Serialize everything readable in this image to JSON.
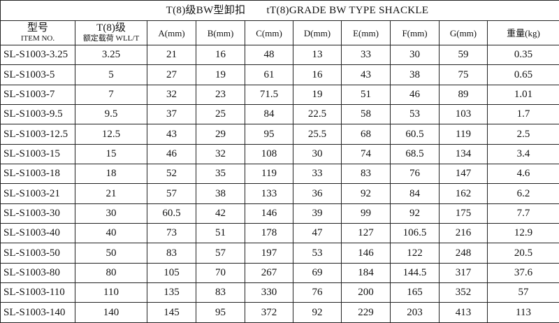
{
  "title": {
    "cn": "T(8)级BW型卸扣",
    "en": "tT(8)GRADE BW TYPE SHACKLE"
  },
  "headers": [
    {
      "cn": "型号",
      "en": "ITEM NO."
    },
    {
      "cn": "T(8)级",
      "en": "额定载荷 WLL/T"
    },
    {
      "label": "A(mm)"
    },
    {
      "label": "B(mm)"
    },
    {
      "label": "C(mm)"
    },
    {
      "label": "D(mm)"
    },
    {
      "label": "E(mm)"
    },
    {
      "label": "F(mm)"
    },
    {
      "label": "G(mm)"
    },
    {
      "label": "重量(kg)"
    }
  ],
  "rows": [
    [
      "SL-S1003-3.25",
      "3.25",
      "21",
      "16",
      "48",
      "13",
      "33",
      "30",
      "59",
      "0.35"
    ],
    [
      "SL-S1003-5",
      "5",
      "27",
      "19",
      "61",
      "16",
      "43",
      "38",
      "75",
      "0.65"
    ],
    [
      "SL-S1003-7",
      "7",
      "32",
      "23",
      "71.5",
      "19",
      "51",
      "46",
      "89",
      "1.01"
    ],
    [
      "SL-S1003-9.5",
      "9.5",
      "37",
      "25",
      "84",
      "22.5",
      "58",
      "53",
      "103",
      "1.7"
    ],
    [
      "SL-S1003-12.5",
      "12.5",
      "43",
      "29",
      "95",
      "25.5",
      "68",
      "60.5",
      "119",
      "2.5"
    ],
    [
      "SL-S1003-15",
      "15",
      "46",
      "32",
      "108",
      "30",
      "74",
      "68.5",
      "134",
      "3.4"
    ],
    [
      "SL-S1003-18",
      "18",
      "52",
      "35",
      "119",
      "33",
      "83",
      "76",
      "147",
      "4.6"
    ],
    [
      "SL-S1003-21",
      "21",
      "57",
      "38",
      "133",
      "36",
      "92",
      "84",
      "162",
      "6.2"
    ],
    [
      "SL-S1003-30",
      "30",
      "60.5",
      "42",
      "146",
      "39",
      "99",
      "92",
      "175",
      "7.7"
    ],
    [
      "SL-S1003-40",
      "40",
      "73",
      "51",
      "178",
      "47",
      "127",
      "106.5",
      "216",
      "12.9"
    ],
    [
      "SL-S1003-50",
      "50",
      "83",
      "57",
      "197",
      "53",
      "146",
      "122",
      "248",
      "20.5"
    ],
    [
      "SL-S1003-80",
      "80",
      "105",
      "70",
      "267",
      "69",
      "184",
      "144.5",
      "317",
      "37.6"
    ],
    [
      "SL-S1003-110",
      "110",
      "135",
      "83",
      "330",
      "76",
      "200",
      "165",
      "352",
      "57"
    ],
    [
      "SL-S1003-140",
      "140",
      "145",
      "95",
      "372",
      "92",
      "229",
      "203",
      "413",
      "113"
    ]
  ]
}
